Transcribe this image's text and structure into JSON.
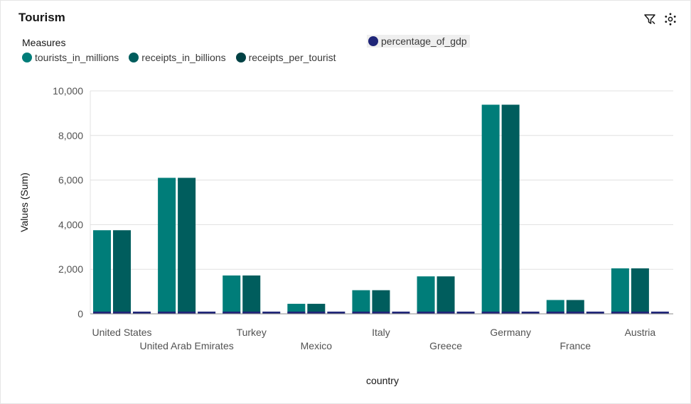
{
  "widget": {
    "title": "Tourism",
    "filter_icon": "filter-icon",
    "settings_icon": "settings-icon"
  },
  "legend": {
    "title": "Measures",
    "items": [
      {
        "label": "tourists_in_millions",
        "color": "#007d79"
      },
      {
        "label": "receipts_in_billions",
        "color": "#005d5d"
      },
      {
        "label": "receipts_per_tourist",
        "color": "#004144"
      }
    ],
    "secondary": {
      "label": "percentage_of_gdp",
      "color": "#1f2578"
    }
  },
  "chart_data": {
    "type": "bar",
    "xlabel": "country",
    "ylabel": "Values (Sum)",
    "ylim": [
      0,
      10000
    ],
    "yticks": [
      "0",
      "2,000",
      "4,000",
      "6,000",
      "8,000",
      "10,000"
    ],
    "categories": [
      "United States",
      "United Arab Emirates",
      "Turkey",
      "Mexico",
      "Italy",
      "Greece",
      "Germany",
      "France",
      "Austria"
    ],
    "series": [
      {
        "name": "tourists_in_millions",
        "color": "#007d79",
        "values": [
          3750,
          6100,
          1720,
          450,
          1060,
          1680,
          9380,
          620,
          2040
        ]
      },
      {
        "name": "receipts_in_billions",
        "color": "#005d5d",
        "values": [
          3750,
          6100,
          1720,
          450,
          1060,
          1680,
          9380,
          620,
          2040
        ]
      },
      {
        "name": "receipts_per_tourist",
        "color": "#004144",
        "values": [
          0,
          0,
          0,
          0,
          0,
          0,
          0,
          0,
          0
        ]
      },
      {
        "name": "percentage_of_gdp",
        "color": "#1f2578",
        "values": [
          100,
          100,
          100,
          100,
          100,
          100,
          100,
          100,
          100
        ]
      }
    ]
  }
}
